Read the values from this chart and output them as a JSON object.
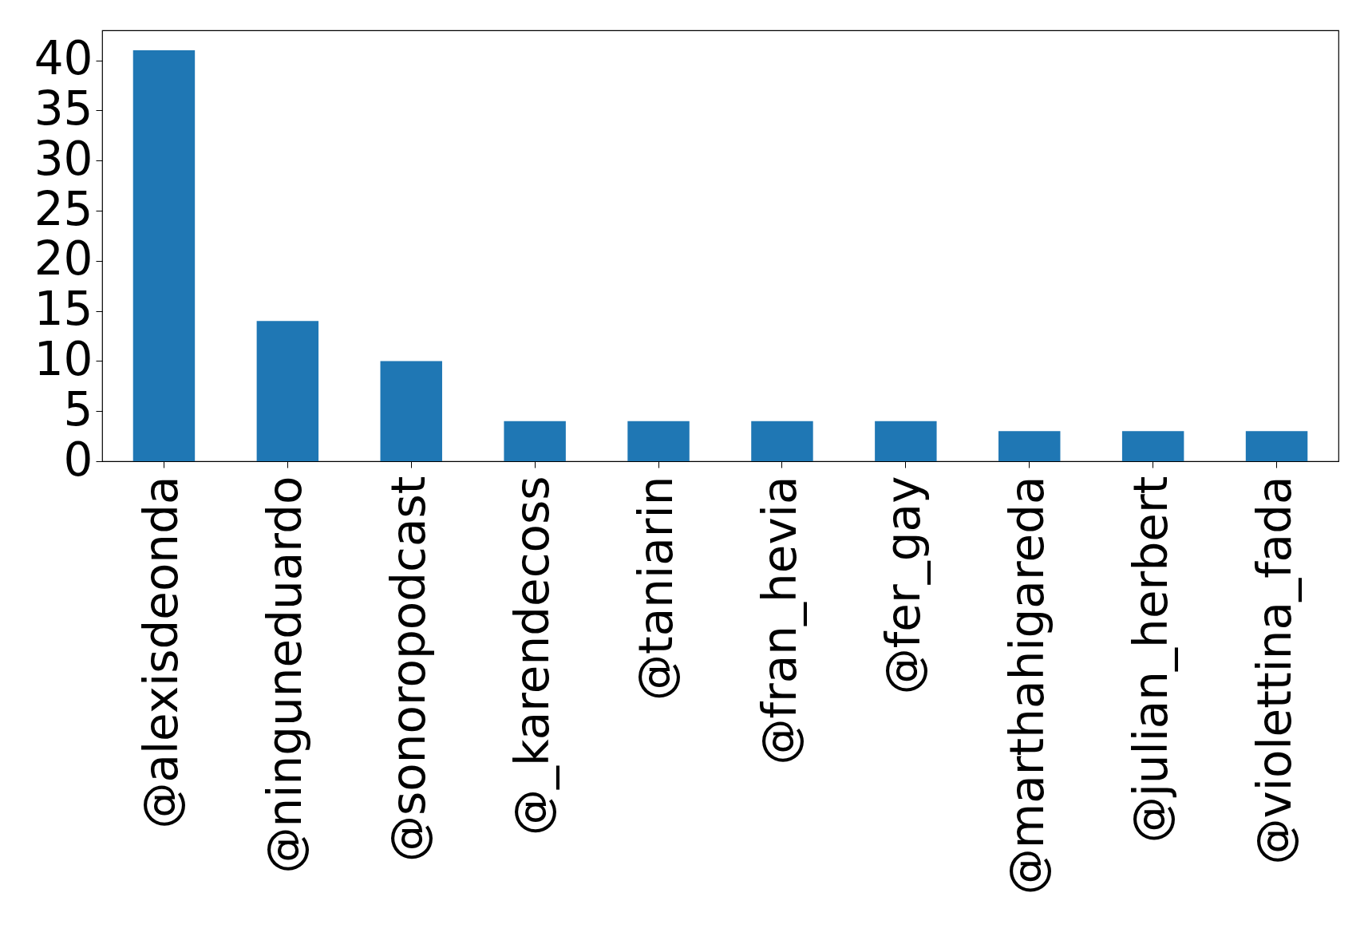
{
  "chart_data": {
    "type": "bar",
    "categories": [
      "@alexisdeonda",
      "@ninguneduardo",
      "@sonoropodcast",
      "@_karendecoss",
      "@taniarin",
      "@fran_hevia",
      "@fer_gay",
      "@marthahigareda",
      "@julian_herbert",
      "@violettina_fada"
    ],
    "series": [
      {
        "color": "#1f77b4",
        "values": [
          41,
          14,
          10,
          4,
          4,
          4,
          4,
          3,
          3,
          3
        ]
      }
    ],
    "ylim": [
      0,
      43
    ],
    "yticks": [
      0,
      5,
      10,
      15,
      20,
      25,
      30,
      35,
      40
    ],
    "grid": false
  }
}
